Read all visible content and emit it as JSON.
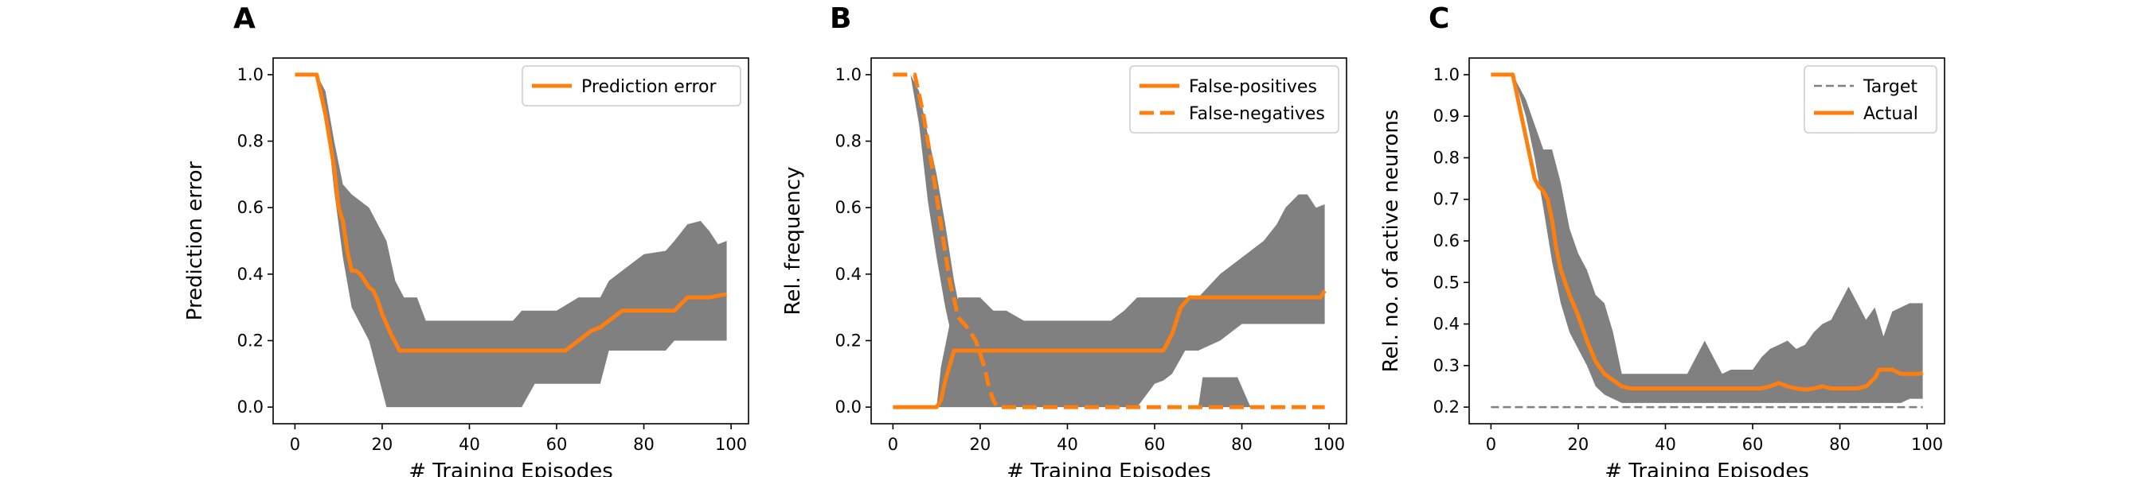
{
  "chart_data": [
    {
      "panel": "A",
      "type": "line",
      "xlabel": "# Training Episodes",
      "ylabel": "Prediction error",
      "xlim": [
        -5,
        104
      ],
      "ylim": [
        -0.05,
        1.05
      ],
      "xticks": [
        0,
        20,
        40,
        60,
        80,
        100
      ],
      "xtick_labels": [
        "0",
        "20",
        "40",
        "60",
        "80",
        "100"
      ],
      "yticks": [
        0.0,
        0.2,
        0.4,
        0.6,
        0.8,
        1.0
      ],
      "ytick_labels": [
        "0.0",
        "0.2",
        "0.4",
        "0.6",
        "0.8",
        "1.0"
      ],
      "grid": false,
      "legend_position": "upper right",
      "band": {
        "color": "#808080",
        "x": [
          0,
          5,
          7,
          9,
          11,
          13,
          15,
          17,
          19,
          21,
          23,
          25,
          28,
          30,
          35,
          40,
          45,
          50,
          52,
          55,
          60,
          65,
          70,
          72,
          75,
          80,
          85,
          87,
          90,
          93,
          95,
          97,
          99
        ],
        "upper": [
          1.0,
          1.0,
          0.95,
          0.8,
          0.67,
          0.64,
          0.62,
          0.6,
          0.55,
          0.5,
          0.38,
          0.33,
          0.33,
          0.26,
          0.26,
          0.26,
          0.26,
          0.26,
          0.29,
          0.29,
          0.29,
          0.33,
          0.33,
          0.38,
          0.41,
          0.46,
          0.47,
          0.5,
          0.55,
          0.56,
          0.53,
          0.49,
          0.5
        ],
        "lower": [
          1.0,
          1.0,
          0.9,
          0.65,
          0.45,
          0.3,
          0.25,
          0.2,
          0.1,
          0.0,
          0.0,
          0.0,
          0.0,
          0.0,
          0.0,
          0.0,
          0.0,
          0.0,
          0.0,
          0.07,
          0.07,
          0.07,
          0.07,
          0.17,
          0.17,
          0.17,
          0.17,
          0.2,
          0.2,
          0.2,
          0.2,
          0.2,
          0.2
        ]
      },
      "series": [
        {
          "name": "Prediction error",
          "color": "#ff7f0e",
          "style": "solid",
          "x": [
            0,
            5,
            7,
            9,
            10,
            11,
            12,
            13,
            14,
            15,
            16,
            17,
            18,
            19,
            20,
            22,
            24,
            30,
            40,
            50,
            60,
            62,
            64,
            66,
            68,
            70,
            72,
            75,
            80,
            85,
            87,
            90,
            95,
            99
          ],
          "y": [
            1.0,
            1.0,
            0.88,
            0.72,
            0.6,
            0.56,
            0.47,
            0.41,
            0.41,
            0.4,
            0.38,
            0.36,
            0.35,
            0.32,
            0.28,
            0.22,
            0.17,
            0.17,
            0.17,
            0.17,
            0.17,
            0.17,
            0.19,
            0.21,
            0.23,
            0.24,
            0.26,
            0.29,
            0.29,
            0.29,
            0.29,
            0.33,
            0.33,
            0.34
          ]
        }
      ]
    },
    {
      "panel": "B",
      "type": "line",
      "xlabel": "# Training Episodes",
      "ylabel": "Rel. frequency",
      "xlim": [
        -5,
        104
      ],
      "ylim": [
        -0.05,
        1.05
      ],
      "xticks": [
        0,
        20,
        40,
        60,
        80,
        100
      ],
      "xtick_labels": [
        "0",
        "20",
        "40",
        "60",
        "80",
        "100"
      ],
      "yticks": [
        0.0,
        0.2,
        0.4,
        0.6,
        0.8,
        1.0
      ],
      "ytick_labels": [
        "0.0",
        "0.2",
        "0.4",
        "0.6",
        "0.8",
        "1.0"
      ],
      "grid": false,
      "legend_position": "upper right",
      "bands": [
        {
          "color": "#808080",
          "x": [
            4,
            6,
            8,
            10,
            12,
            14,
            16,
            18,
            20,
            22,
            24
          ],
          "upper": [
            1.0,
            0.95,
            0.82,
            0.7,
            0.55,
            0.38,
            0.25,
            0.18,
            0.1,
            0.03,
            0.0
          ],
          "lower": [
            1.0,
            0.85,
            0.62,
            0.45,
            0.3,
            0.18,
            0.12,
            0.07,
            0.02,
            0.0,
            0.0
          ]
        },
        {
          "color": "#808080",
          "x": [
            10,
            11,
            13,
            15,
            17,
            20,
            23,
            26,
            30,
            40,
            50,
            53,
            56,
            60,
            62,
            64,
            67,
            70,
            75,
            80,
            85,
            88,
            90,
            93,
            95,
            97,
            99
          ],
          "upper": [
            0.0,
            0.12,
            0.25,
            0.33,
            0.33,
            0.33,
            0.29,
            0.29,
            0.26,
            0.26,
            0.26,
            0.29,
            0.33,
            0.33,
            0.33,
            0.33,
            0.33,
            0.33,
            0.4,
            0.45,
            0.5,
            0.55,
            0.6,
            0.64,
            0.64,
            0.6,
            0.61
          ],
          "lower": [
            0.0,
            0.0,
            0.0,
            0.0,
            0.0,
            0.0,
            0.0,
            0.0,
            0.0,
            0.0,
            0.0,
            0.0,
            0.0,
            0.07,
            0.08,
            0.1,
            0.17,
            0.17,
            0.2,
            0.25,
            0.25,
            0.25,
            0.25,
            0.25,
            0.25,
            0.25,
            0.25
          ]
        },
        {
          "color": "#808080",
          "x": [
            70,
            71,
            74,
            77,
            79,
            82
          ],
          "upper": [
            0.0,
            0.09,
            0.09,
            0.09,
            0.09,
            0.0
          ],
          "lower": [
            0.0,
            0.0,
            0.0,
            0.0,
            0.0,
            0.0
          ]
        }
      ],
      "series": [
        {
          "name": "False-positives",
          "color": "#ff7f0e",
          "style": "solid",
          "x": [
            0,
            10,
            11,
            12,
            14,
            16,
            20,
            30,
            40,
            50,
            60,
            62,
            64,
            66,
            68,
            70,
            80,
            90,
            98,
            99
          ],
          "y": [
            0.0,
            0.0,
            0.02,
            0.08,
            0.17,
            0.17,
            0.17,
            0.17,
            0.17,
            0.17,
            0.17,
            0.17,
            0.22,
            0.3,
            0.33,
            0.33,
            0.33,
            0.33,
            0.33,
            0.35
          ]
        },
        {
          "name": "False-negatives",
          "color": "#ff7f0e",
          "style": "dashed",
          "x": [
            0,
            5,
            7,
            9,
            11,
            13,
            15,
            17,
            19,
            21,
            22,
            23,
            24,
            30,
            40,
            60,
            80,
            99
          ],
          "y": [
            1.0,
            1.0,
            0.88,
            0.72,
            0.55,
            0.38,
            0.27,
            0.24,
            0.2,
            0.12,
            0.06,
            0.02,
            0.0,
            0.0,
            0.0,
            0.0,
            0.0,
            0.0
          ]
        }
      ]
    },
    {
      "panel": "C",
      "type": "line",
      "xlabel": "# Training Episodes",
      "ylabel": "Rel. no. of active neurons",
      "xlim": [
        -5,
        104
      ],
      "ylim": [
        0.16,
        1.04
      ],
      "xticks": [
        0,
        20,
        40,
        60,
        80,
        100
      ],
      "xtick_labels": [
        "0",
        "20",
        "40",
        "60",
        "80",
        "100"
      ],
      "yticks": [
        0.2,
        0.3,
        0.4,
        0.5,
        0.6,
        0.7,
        0.8,
        0.9,
        1.0
      ],
      "ytick_labels": [
        "0.2",
        "0.3",
        "0.4",
        "0.5",
        "0.6",
        "0.7",
        "0.8",
        "0.9",
        "1.0"
      ],
      "grid": false,
      "legend_position": "upper right",
      "band": {
        "color": "#808080",
        "x": [
          0,
          5,
          6,
          8,
          10,
          12,
          14,
          16,
          18,
          20,
          22,
          24,
          26,
          28,
          30,
          35,
          40,
          45,
          47,
          49,
          51,
          53,
          55,
          60,
          62,
          64,
          66,
          68,
          70,
          72,
          74,
          76,
          78,
          80,
          82,
          84,
          86,
          88,
          90,
          92,
          94,
          96,
          99
        ],
        "upper": [
          1.0,
          1.0,
          0.98,
          0.94,
          0.88,
          0.82,
          0.82,
          0.74,
          0.63,
          0.57,
          0.53,
          0.47,
          0.45,
          0.38,
          0.28,
          0.28,
          0.28,
          0.28,
          0.32,
          0.36,
          0.32,
          0.28,
          0.29,
          0.29,
          0.32,
          0.34,
          0.35,
          0.36,
          0.34,
          0.35,
          0.38,
          0.4,
          0.41,
          0.45,
          0.49,
          0.45,
          0.41,
          0.44,
          0.37,
          0.43,
          0.44,
          0.45,
          0.45
        ],
        "lower": [
          1.0,
          1.0,
          0.97,
          0.9,
          0.8,
          0.68,
          0.55,
          0.45,
          0.38,
          0.34,
          0.3,
          0.25,
          0.23,
          0.22,
          0.21,
          0.21,
          0.21,
          0.21,
          0.21,
          0.21,
          0.21,
          0.21,
          0.21,
          0.21,
          0.21,
          0.21,
          0.21,
          0.21,
          0.21,
          0.21,
          0.21,
          0.21,
          0.21,
          0.21,
          0.21,
          0.21,
          0.21,
          0.21,
          0.21,
          0.21,
          0.21,
          0.22,
          0.22
        ]
      },
      "series": [
        {
          "name": "Target",
          "color": "#808080",
          "style": "dashed",
          "x": [
            0,
            99
          ],
          "y": [
            0.2,
            0.2
          ]
        },
        {
          "name": "Actual",
          "color": "#ff7f0e",
          "style": "solid",
          "x": [
            0,
            5,
            7,
            9,
            10,
            11,
            12,
            13,
            14,
            15,
            16,
            17,
            18,
            20,
            22,
            24,
            26,
            28,
            30,
            32,
            40,
            50,
            60,
            62,
            64,
            66,
            68,
            70,
            72,
            74,
            76,
            78,
            80,
            84,
            86,
            88,
            89,
            90,
            92,
            94,
            96,
            98,
            99
          ],
          "y": [
            1.0,
            1.0,
            0.9,
            0.8,
            0.75,
            0.73,
            0.72,
            0.7,
            0.65,
            0.58,
            0.53,
            0.5,
            0.47,
            0.42,
            0.36,
            0.31,
            0.28,
            0.265,
            0.25,
            0.245,
            0.245,
            0.245,
            0.245,
            0.245,
            0.25,
            0.258,
            0.25,
            0.245,
            0.242,
            0.245,
            0.25,
            0.245,
            0.245,
            0.245,
            0.25,
            0.27,
            0.29,
            0.29,
            0.29,
            0.28,
            0.28,
            0.28,
            0.282
          ]
        }
      ]
    }
  ]
}
